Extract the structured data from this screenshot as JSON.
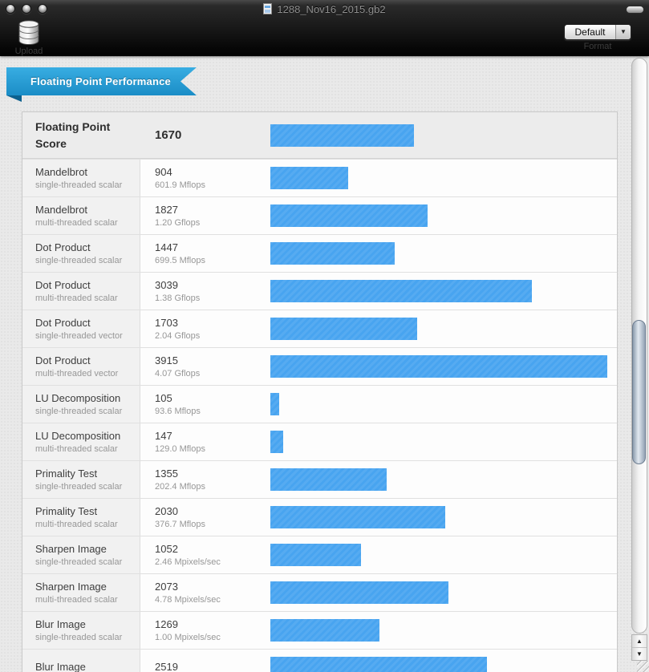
{
  "window": {
    "title": "1288_Nov16_2015.gb2"
  },
  "toolbar": {
    "upload_label": "Upload",
    "format_label": "Format",
    "format_value": "Default"
  },
  "banner": {
    "label": "Floating Point Performance"
  },
  "colors": {
    "bar": "#48a4f0",
    "banner_top": "#38ade2",
    "banner_bottom": "#1b8dc6"
  },
  "chart_data": {
    "type": "bar",
    "title": "Floating Point Performance",
    "max_value": 3915,
    "header": {
      "name": "Floating Point Score",
      "score": 1670
    },
    "rows": [
      {
        "name": "Mandelbrot",
        "variant": "single-threaded scalar",
        "score": 904,
        "rate": "601.9 Mflops"
      },
      {
        "name": "Mandelbrot",
        "variant": "multi-threaded scalar",
        "score": 1827,
        "rate": "1.20 Gflops"
      },
      {
        "name": "Dot Product",
        "variant": "single-threaded scalar",
        "score": 1447,
        "rate": "699.5 Mflops"
      },
      {
        "name": "Dot Product",
        "variant": "multi-threaded scalar",
        "score": 3039,
        "rate": "1.38 Gflops"
      },
      {
        "name": "Dot Product",
        "variant": "single-threaded vector",
        "score": 1703,
        "rate": "2.04 Gflops"
      },
      {
        "name": "Dot Product",
        "variant": "multi-threaded vector",
        "score": 3915,
        "rate": "4.07 Gflops"
      },
      {
        "name": "LU Decomposition",
        "variant": "single-threaded scalar",
        "score": 105,
        "rate": "93.6 Mflops"
      },
      {
        "name": "LU Decomposition",
        "variant": "multi-threaded scalar",
        "score": 147,
        "rate": "129.0 Mflops"
      },
      {
        "name": "Primality Test",
        "variant": "single-threaded scalar",
        "score": 1355,
        "rate": "202.4 Mflops"
      },
      {
        "name": "Primality Test",
        "variant": "multi-threaded scalar",
        "score": 2030,
        "rate": "376.7 Mflops"
      },
      {
        "name": "Sharpen Image",
        "variant": "single-threaded scalar",
        "score": 1052,
        "rate": "2.46 Mpixels/sec"
      },
      {
        "name": "Sharpen Image",
        "variant": "multi-threaded scalar",
        "score": 2073,
        "rate": "4.78 Mpixels/sec"
      },
      {
        "name": "Blur Image",
        "variant": "single-threaded scalar",
        "score": 1269,
        "rate": "1.00 Mpixels/sec"
      },
      {
        "name": "Blur Image",
        "variant": "",
        "score": 2519,
        "rate": ""
      }
    ]
  }
}
